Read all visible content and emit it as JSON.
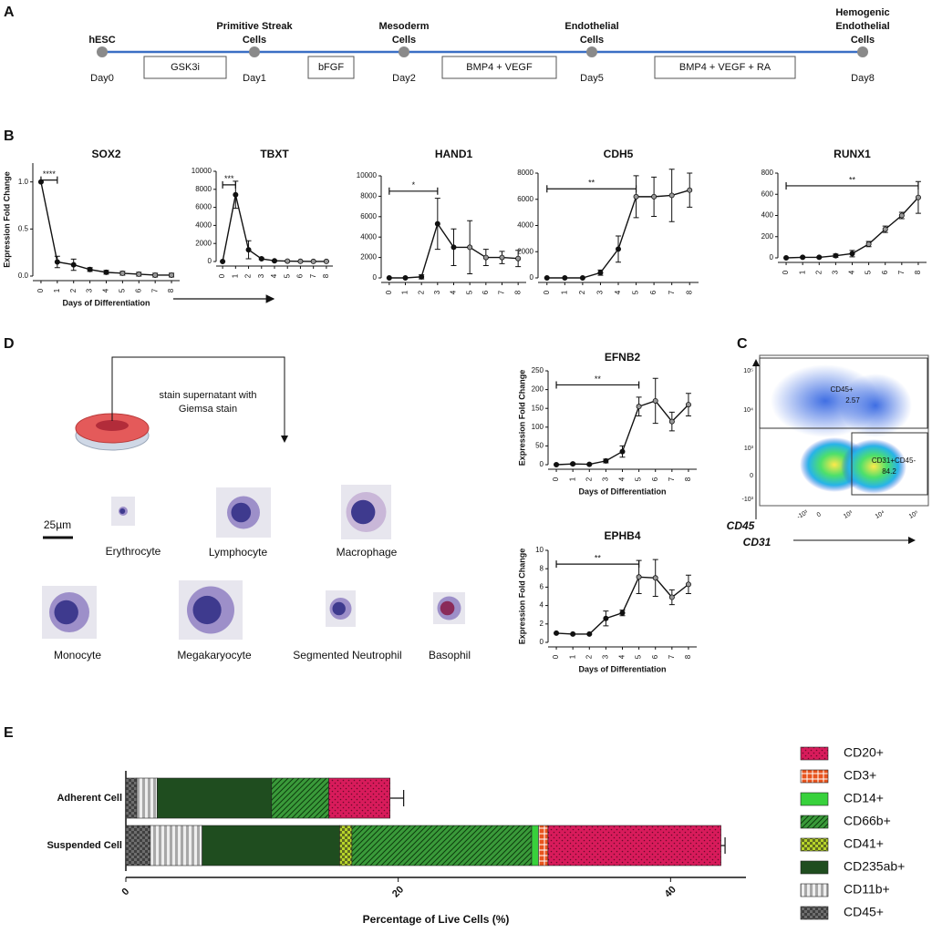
{
  "panel_labels": [
    "A",
    "B",
    "C",
    "D",
    "E"
  ],
  "timeline": {
    "stages": [
      {
        "lines": [
          "hESC"
        ],
        "day": "Day0"
      },
      {
        "lines": [
          "Primitive Streak",
          "Cells"
        ],
        "day": "Day1"
      },
      {
        "lines": [
          "Mesoderm",
          "Cells"
        ],
        "day": "Day2"
      },
      {
        "lines": [
          "Endothelial",
          "Cells"
        ],
        "day": "Day5"
      },
      {
        "lines": [
          "Hemogenic",
          "Endothelial",
          "Cells"
        ],
        "day": "Day8"
      }
    ],
    "treatments": [
      "GSK3i",
      "bFGF",
      "BMP4 + VEGF",
      "BMP4 + VEGF + RA"
    ]
  },
  "chart_data": [
    {
      "type": "line",
      "title": "SOX2",
      "ylabel": "Expression Fold Change",
      "xlabel": "Days of Differentiation",
      "x": [
        0,
        1,
        2,
        3,
        4,
        5,
        6,
        7,
        8
      ],
      "values": [
        1.0,
        0.15,
        0.12,
        0.07,
        0.04,
        0.03,
        0.02,
        0.01,
        0.01
      ],
      "errors": [
        0,
        0.06,
        0.06,
        0.02,
        0.02,
        0.02,
        0.02,
        0.02,
        0.02
      ],
      "xlim": [
        -0.5,
        8.5
      ],
      "xticks": [
        0,
        1,
        2,
        3,
        4,
        5,
        6,
        7,
        8
      ],
      "ylim": [
        0,
        1.2
      ],
      "yticks": [
        {
          "value": 0,
          "label": "0.0"
        },
        {
          "value": 0.5,
          "label": "0.5"
        },
        {
          "value": 1,
          "label": "1.0"
        }
      ],
      "annotation": "****",
      "bracket": [
        0,
        1
      ],
      "color": "#111"
    },
    {
      "type": "line",
      "title": "TBXT",
      "x": [
        0,
        1,
        2,
        3,
        4,
        5,
        6,
        7,
        8
      ],
      "values": [
        0,
        7400,
        1300,
        300,
        80,
        40,
        20,
        10,
        10
      ],
      "errors": [
        0,
        1500,
        1000,
        100,
        40,
        20,
        20,
        10,
        10
      ],
      "xlim": [
        -0.5,
        8.5
      ],
      "xticks": [
        0,
        1,
        2,
        3,
        4,
        5,
        6,
        7,
        8
      ],
      "ylim": [
        0,
        10000
      ],
      "yticks": [
        0,
        2000,
        4000,
        6000,
        8000,
        10000
      ],
      "annotation": "***",
      "bracket": [
        0,
        1
      ],
      "color": "#111"
    },
    {
      "type": "line",
      "title": "HAND1",
      "x": [
        0,
        1,
        2,
        3,
        4,
        5,
        6,
        7,
        8
      ],
      "values": [
        0,
        0,
        100,
        5300,
        3000,
        3000,
        2000,
        2000,
        1900
      ],
      "errors": [
        0,
        0,
        200,
        2500,
        1800,
        2600,
        800,
        600,
        800
      ],
      "xlim": [
        -0.5,
        8.5
      ],
      "xticks": [
        0,
        1,
        2,
        3,
        4,
        5,
        6,
        7,
        8
      ],
      "ylim": [
        0,
        10000
      ],
      "yticks": [
        0,
        2000,
        4000,
        6000,
        8000,
        10000
      ],
      "annotation": "*",
      "bracket": [
        0,
        3
      ],
      "color": "#111"
    },
    {
      "type": "line",
      "title": "CDH5",
      "x": [
        0,
        1,
        2,
        3,
        4,
        5,
        6,
        7,
        8
      ],
      "values": [
        0,
        0,
        0,
        400,
        2200,
        6200,
        6200,
        6300,
        6700
      ],
      "errors": [
        0,
        0,
        0,
        200,
        1000,
        1600,
        1500,
        2000,
        1300
      ],
      "xlim": [
        -0.5,
        8.5
      ],
      "xticks": [
        0,
        1,
        2,
        3,
        4,
        5,
        6,
        7,
        8
      ],
      "ylim": [
        0,
        8000
      ],
      "yticks": [
        0,
        2000,
        4000,
        6000,
        8000
      ],
      "annotation": "**",
      "bracket": [
        0,
        5
      ],
      "color": "#111"
    },
    {
      "type": "line",
      "title": "RUNX1",
      "x": [
        0,
        1,
        2,
        3,
        4,
        5,
        6,
        7,
        8
      ],
      "values": [
        0,
        5,
        5,
        20,
        40,
        130,
        270,
        400,
        570
      ],
      "errors": [
        0,
        5,
        5,
        15,
        30,
        25,
        30,
        30,
        150
      ],
      "xlim": [
        -0.5,
        8.5
      ],
      "xticks": [
        0,
        1,
        2,
        3,
        4,
        5,
        6,
        7,
        8
      ],
      "ylim": [
        0,
        800
      ],
      "yticks": [
        0,
        200,
        400,
        600,
        800
      ],
      "annotation": "**",
      "bracket": [
        0,
        8
      ],
      "color": "#111"
    },
    {
      "type": "line",
      "title": "EFNB2",
      "ylabel": "Expression Fold Change",
      "xlabel": "Days of Differentiation",
      "x": [
        0,
        1,
        2,
        3,
        4,
        5,
        6,
        7,
        8
      ],
      "values": [
        0,
        2,
        1,
        10,
        35,
        155,
        170,
        115,
        160
      ],
      "errors": [
        0,
        2,
        1,
        5,
        15,
        25,
        60,
        25,
        30
      ],
      "xlim": [
        -0.5,
        8.5
      ],
      "xticks": [
        0,
        1,
        2,
        3,
        4,
        5,
        6,
        7,
        8
      ],
      "ylim": [
        0,
        250
      ],
      "yticks": [
        0,
        50,
        100,
        150,
        200,
        250
      ],
      "annotation": "**",
      "bracket": [
        0,
        5
      ],
      "color": "#111"
    },
    {
      "type": "line",
      "title": "EPHB4",
      "ylabel": "Expression Fold Change",
      "xlabel": "Days of Differentiation",
      "x": [
        0,
        1,
        2,
        3,
        4,
        5,
        6,
        7,
        8
      ],
      "values": [
        1,
        0.9,
        0.9,
        2.6,
        3.2,
        7.1,
        7,
        4.9,
        6.3
      ],
      "errors": [
        0,
        0,
        0,
        0.8,
        0.3,
        1.8,
        2,
        0.8,
        1
      ],
      "xlim": [
        -0.5,
        8.5
      ],
      "xticks": [
        0,
        1,
        2,
        3,
        4,
        5,
        6,
        7,
        8
      ],
      "ylim": [
        0,
        10
      ],
      "yticks": [
        0,
        2,
        4,
        6,
        8,
        10
      ],
      "annotation": "**",
      "bracket": [
        0,
        5
      ],
      "color": "#111"
    },
    {
      "type": "barh-stacked",
      "categories": [
        "Adherent Cell",
        "Suspended Cell"
      ],
      "xlabel": "Percentage of Live Cells (%)",
      "xlim": [
        0,
        45
      ],
      "xticks": [
        0,
        20,
        40
      ],
      "series": [
        {
          "name": "CD45+",
          "color": "#6e6e6e",
          "label_color": "#6b1a2a",
          "pattern": "checker",
          "values": [
            0.8,
            1.8
          ]
        },
        {
          "name": "CD11b+",
          "color": "#a8a8a8",
          "label_color": "#6b1a2a",
          "pattern": "stripes",
          "values": [
            1.5,
            3.8
          ]
        },
        {
          "name": "CD235ab+",
          "color": "#1f4d1f",
          "label_color": "#1f4d1f",
          "pattern": "solid",
          "values": [
            8.4,
            10.1
          ]
        },
        {
          "name": "CD41+",
          "color": "#b7d42a",
          "label_color": "#1f4d1f",
          "pattern": "checker",
          "values": [
            0,
            0.9
          ]
        },
        {
          "name": "CD66b+",
          "color": "#3a9a3a",
          "label_color": "#1b2a5a",
          "pattern": "hatch",
          "values": [
            4.2,
            13.2
          ]
        },
        {
          "name": "CD14+",
          "color": "#38d13c",
          "label_color": "#d4621a",
          "pattern": "solid",
          "values": [
            0,
            0.5
          ]
        },
        {
          "name": "CD3+",
          "color": "#e8541e",
          "label_color": "#a0224a",
          "pattern": "grid",
          "values": [
            0,
            0.7
          ]
        },
        {
          "name": "CD20+",
          "color": "#d81b5b",
          "label_color": "#3d8a2a",
          "pattern": "dots",
          "values": [
            4.5,
            12.7
          ],
          "errors": [
            1.0,
            0.3
          ]
        }
      ]
    }
  ],
  "staining": {
    "instruction": [
      "stain supernatant with",
      "Giemsa stain"
    ],
    "scale_bar": "25µm",
    "cells": [
      "Erythrocyte",
      "Lymphocyte",
      "Macrophage",
      "Monocyte",
      "Megakaryocyte",
      "Segmented Neutrophil",
      "Basophil"
    ]
  },
  "flow": {
    "y_label": "CD45",
    "x_label": "CD31",
    "yticks": [
      "10⁵",
      "10⁴",
      "10³",
      "0",
      "-10³"
    ],
    "xticks": [
      "-10³",
      "0",
      "10³",
      "10⁴",
      "10⁵"
    ],
    "gates": [
      {
        "lines": [
          "CD45+",
          "2.57"
        ]
      },
      {
        "lines": [
          "CD31+CD45-",
          "84.2"
        ]
      }
    ]
  }
}
